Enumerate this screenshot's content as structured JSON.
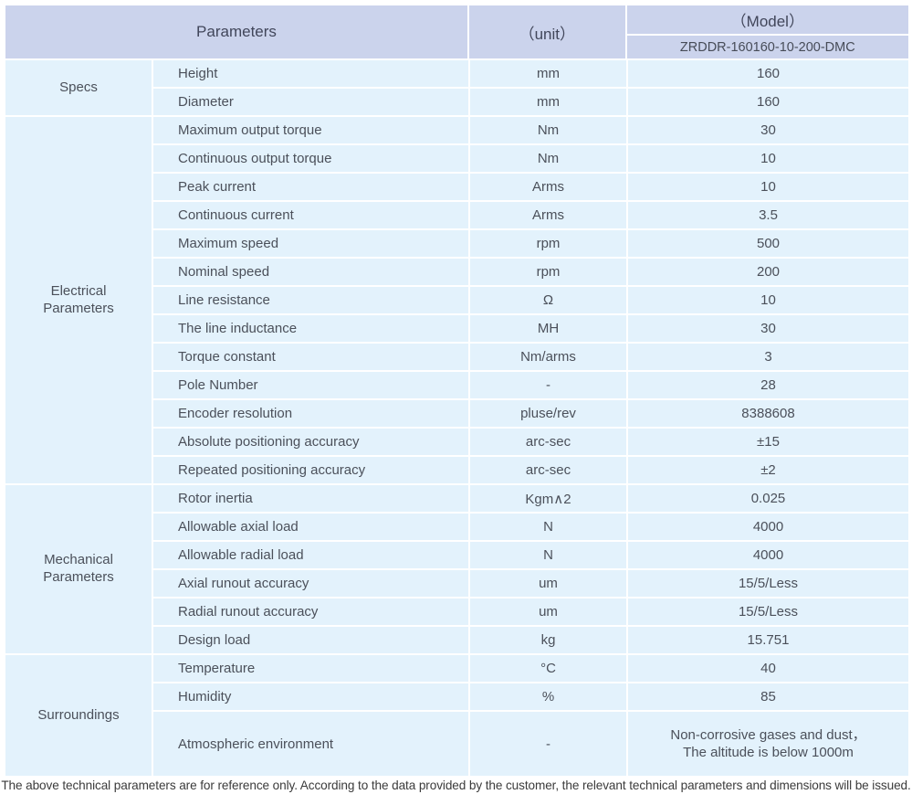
{
  "header": {
    "parameters_label": "Parameters",
    "unit_label": "（unit）",
    "model_label": "（Model）",
    "model_value": "ZRDDR-160160-10-200-DMC"
  },
  "sections": [
    {
      "label": "Specs",
      "rows": [
        {
          "name": "Height",
          "unit": "mm",
          "value": "160"
        },
        {
          "name": "Diameter",
          "unit": "mm",
          "value": "160"
        }
      ]
    },
    {
      "label": "Electrical Parameters",
      "rows": [
        {
          "name": "Maximum output torque",
          "unit": "Nm",
          "value": "30"
        },
        {
          "name": "Continuous output torque",
          "unit": "Nm",
          "value": "10"
        },
        {
          "name": "Peak current",
          "unit": "Arms",
          "value": "10"
        },
        {
          "name": "Continuous current",
          "unit": "Arms",
          "value": "3.5"
        },
        {
          "name": "Maximum speed",
          "unit": "rpm",
          "value": "500"
        },
        {
          "name": "Nominal speed",
          "unit": "rpm",
          "value": "200"
        },
        {
          "name": "Line resistance",
          "unit": "Ω",
          "value": "10"
        },
        {
          "name": "The line inductance",
          "unit": "MH",
          "value": "30"
        },
        {
          "name": "Torque constant",
          "unit": "Nm/arms",
          "value": "3"
        },
        {
          "name": "Pole Number",
          "unit": "-",
          "value": "28"
        },
        {
          "name": "Encoder resolution",
          "unit": "pluse/rev",
          "value": "8388608"
        },
        {
          "name": "Absolute positioning accuracy",
          "unit": "arc-sec",
          "value": "±15"
        },
        {
          "name": "Repeated positioning accuracy",
          "unit": "arc-sec",
          "value": "±2"
        }
      ]
    },
    {
      "label": "Mechanical Parameters",
      "rows": [
        {
          "name": "Rotor inertia",
          "unit": "Kgm∧2",
          "value": "0.025"
        },
        {
          "name": "Allowable axial load",
          "unit": "N",
          "value": "4000"
        },
        {
          "name": "Allowable radial load",
          "unit": "N",
          "value": "4000"
        },
        {
          "name": "Axial runout accuracy",
          "unit": "um",
          "value": "15/5/Less"
        },
        {
          "name": "Radial runout accuracy",
          "unit": "um",
          "value": "15/5/Less"
        },
        {
          "name": "Design load",
          "unit": "kg",
          "value": "15.751"
        }
      ]
    },
    {
      "label": "Surroundings",
      "rows": [
        {
          "name": "Temperature",
          "unit": "°C",
          "value": "40"
        },
        {
          "name": "Humidity",
          "unit": "%",
          "value": "85"
        },
        {
          "name": "Atmospheric environment",
          "unit": "-",
          "value": "Non-corrosive gases and dust，\nThe altitude is below 1000m",
          "tall": true
        }
      ]
    }
  ],
  "footer": {
    "note": "The above technical parameters are for reference only. According to the data provided by the customer, the relevant technical parameters and dimensions will be issued."
  },
  "colors": {
    "header_bg": "#cbd3ec",
    "row_bg": "#e3f2fc",
    "text": "#4b505a"
  }
}
